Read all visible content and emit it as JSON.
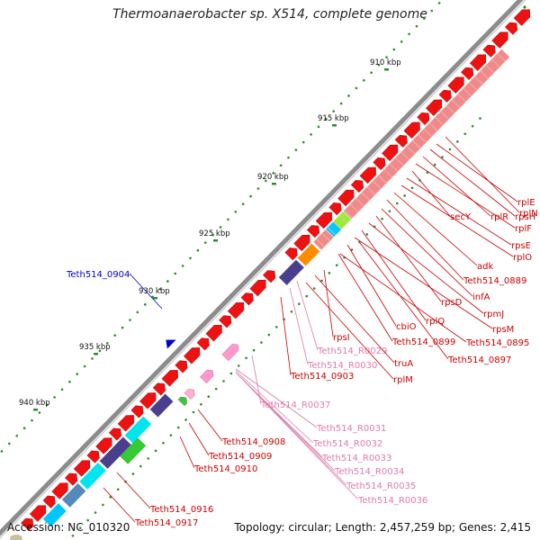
{
  "title": "Thermoanaerobacter sp. X514, complete genome",
  "footer": {
    "accession": "Accession: NC_010320",
    "stats": "Topology: circular; Length: 2,457,259 bp; Genes: 2,415"
  },
  "colors": {
    "backbone": "#8c8c8c",
    "tick": "#2e8b2e",
    "forward_cds": "#ee1111",
    "reverse_cds": "#f08a8a",
    "gene_label": "#cc0000",
    "rna_label": "#e07aaa",
    "highlight_label": "#0000cc"
  },
  "scale_ticks": [
    "910 kbp",
    "915 kbp",
    "920 kbp",
    "925 kbp",
    "930 kbp",
    "935 kbp",
    "940 kbp"
  ],
  "gene_labels": [
    {
      "text": "rplN",
      "kind": "cds"
    },
    {
      "text": "rplE",
      "kind": "cds"
    },
    {
      "text": "rpsH",
      "kind": "cds"
    },
    {
      "text": "rplR",
      "kind": "cds"
    },
    {
      "text": "rplF",
      "kind": "cds"
    },
    {
      "text": "secY",
      "kind": "cds"
    },
    {
      "text": "rpsE",
      "kind": "cds"
    },
    {
      "text": "rplO",
      "kind": "cds"
    },
    {
      "text": "adk",
      "kind": "cds"
    },
    {
      "text": "Teth514_0889",
      "kind": "cds"
    },
    {
      "text": "infA",
      "kind": "cds"
    },
    {
      "text": "rpsD",
      "kind": "cds"
    },
    {
      "text": "rpmJ",
      "kind": "cds"
    },
    {
      "text": "rplQ",
      "kind": "cds"
    },
    {
      "text": "rpsM",
      "kind": "cds"
    },
    {
      "text": "cbiO",
      "kind": "cds"
    },
    {
      "text": "Teth514_0899",
      "kind": "cds"
    },
    {
      "text": "Teth514_0895",
      "kind": "cds"
    },
    {
      "text": "rpsI",
      "kind": "cds"
    },
    {
      "text": "Teth514_0897",
      "kind": "cds"
    },
    {
      "text": "truA",
      "kind": "cds"
    },
    {
      "text": "Teth514_R0029",
      "kind": "rna"
    },
    {
      "text": "Teth514_R0030",
      "kind": "rna"
    },
    {
      "text": "Teth514_0903",
      "kind": "cds"
    },
    {
      "text": "rplM",
      "kind": "cds"
    },
    {
      "text": "Teth514_0904",
      "kind": "highlight"
    },
    {
      "text": "Teth514_R0037",
      "kind": "rna"
    },
    {
      "text": "Teth514_R0031",
      "kind": "rna"
    },
    {
      "text": "Teth514_R0032",
      "kind": "rna"
    },
    {
      "text": "Teth514_0908",
      "kind": "cds"
    },
    {
      "text": "Teth514_0909",
      "kind": "cds"
    },
    {
      "text": "Teth514_R0033",
      "kind": "rna"
    },
    {
      "text": "Teth514_0910",
      "kind": "cds"
    },
    {
      "text": "Teth514_R0034",
      "kind": "rna"
    },
    {
      "text": "Teth514_R0035",
      "kind": "rna"
    },
    {
      "text": "Teth514_R0036",
      "kind": "rna"
    },
    {
      "text": "Teth514_0916",
      "kind": "cds"
    },
    {
      "text": "Teth514_0917",
      "kind": "cds"
    }
  ]
}
